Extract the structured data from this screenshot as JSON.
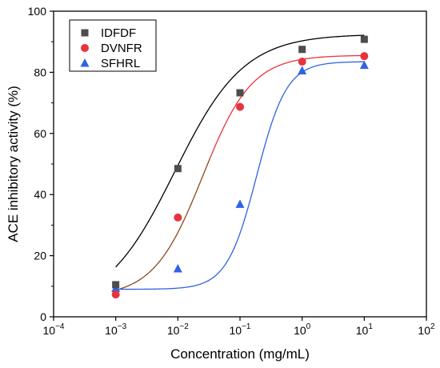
{
  "chart_data": {
    "type": "scatter",
    "xlabel": "Concentration (mg/mL)",
    "ylabel": "ACE inhibitory activity (%)",
    "xscale": "log",
    "xlim": [
      0.0001,
      100
    ],
    "ylim": [
      0,
      100
    ],
    "grid": false,
    "legend_position": "top-left",
    "x_tick_labels": [
      {
        "base": "10",
        "exp": "−4",
        "value": 0.0001
      },
      {
        "base": "10",
        "exp": "−3",
        "value": 0.001
      },
      {
        "base": "10",
        "exp": "−2",
        "value": 0.01
      },
      {
        "base": "10",
        "exp": "−1",
        "value": 0.1
      },
      {
        "base": "10",
        "exp": "0",
        "value": 1
      },
      {
        "base": "10",
        "exp": "1",
        "value": 10
      },
      {
        "base": "10",
        "exp": "2",
        "value": 100
      }
    ],
    "y_ticks": [
      0,
      20,
      40,
      60,
      80,
      100
    ],
    "y_tick_labels": [
      "0",
      "20",
      "40",
      "60",
      "80",
      "100"
    ],
    "series": [
      {
        "name": "IDFDF",
        "marker": "square",
        "marker_color": "#4d4d4d",
        "curve_color": "#000000",
        "x": [
          0.001,
          0.01,
          0.1,
          1,
          10
        ],
        "y": [
          10.5,
          48.5,
          73.3,
          87.5,
          90.8
        ],
        "fit": {
          "bottom": 2.5,
          "top": 92.5,
          "log_ec50": -2.05,
          "hill": 0.78
        }
      },
      {
        "name": "DVNFR",
        "marker": "circle",
        "marker_color": "#e8333c",
        "curve_color": "#e8333c",
        "curve_low_color": "#8b4a1f",
        "x": [
          0.001,
          0.01,
          0.1,
          1,
          10
        ],
        "y": [
          7.3,
          32.5,
          68.7,
          83.5,
          85.3
        ],
        "fit": {
          "bottom": 6.5,
          "top": 85.6,
          "log_ec50": -1.6,
          "hill": 1.1
        }
      },
      {
        "name": "SFHRL",
        "marker": "triangle",
        "marker_color": "#2f63e3",
        "curve_color": "#2f63e3",
        "x": [
          0.001,
          0.01,
          0.1,
          1,
          10
        ],
        "y": [
          9.3,
          15.7,
          36.8,
          80.5,
          82.3
        ],
        "fit": {
          "bottom": 9.0,
          "top": 83.5,
          "log_ec50": -0.73,
          "hill": 1.8
        }
      }
    ]
  }
}
